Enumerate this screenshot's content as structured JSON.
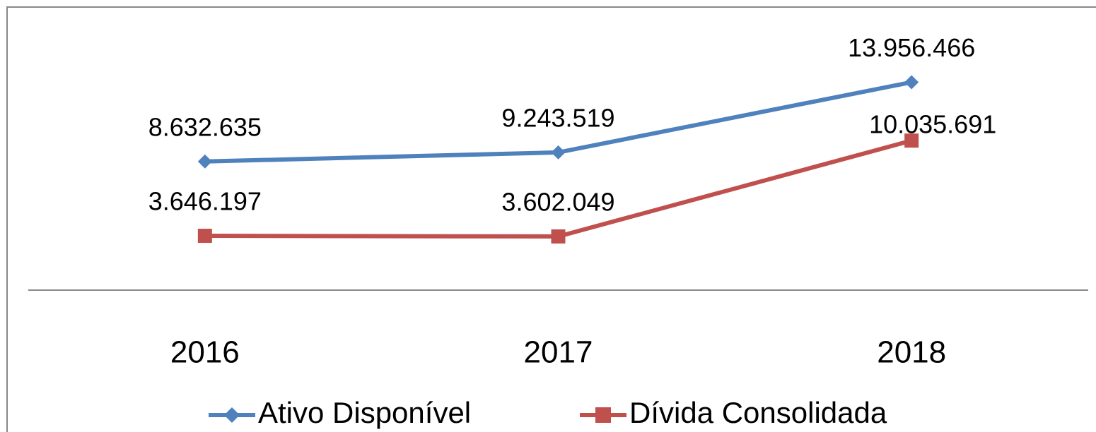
{
  "chart_data": {
    "type": "line",
    "categories": [
      "2016",
      "2017",
      "2018"
    ],
    "series": [
      {
        "name": "Ativo Disponível",
        "color": "#4f81bd",
        "marker": "diamond",
        "values": [
          8632635,
          9243519,
          13956466
        ],
        "value_labels": [
          "8.632.635",
          "9.243.519",
          "13.956.466"
        ]
      },
      {
        "name": "Dívida Consolidada",
        "color": "#c0504d",
        "marker": "square",
        "values": [
          3646197,
          3602049,
          10035691
        ],
        "value_labels": [
          "3.646.197",
          "3.602.049",
          "10.035.691"
        ]
      }
    ],
    "ylim": [
      0,
      19000000
    ],
    "legend": "bottom"
  }
}
